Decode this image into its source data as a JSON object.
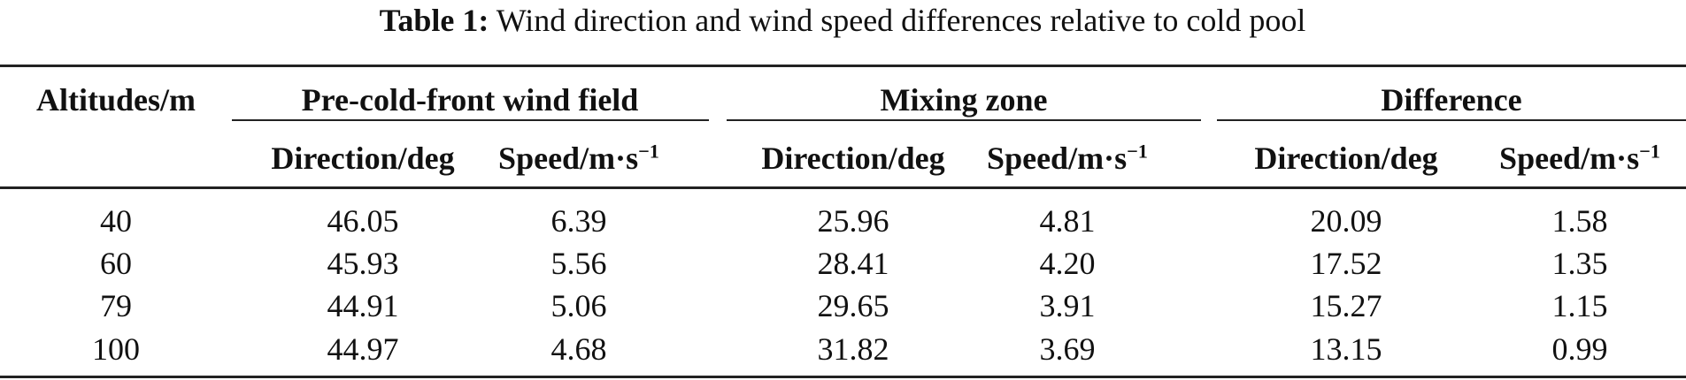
{
  "caption": {
    "label": "Table 1:",
    "text": "Wind direction and wind speed differences relative to cold pool"
  },
  "header": {
    "altitude": "Altitudes/m",
    "groups": [
      "Pre-cold-front wind field",
      "Mixing zone",
      "Difference"
    ],
    "direction": "Direction/deg",
    "speed": "Speed/m·s",
    "speed_exp": "−1"
  },
  "rows": [
    [
      "40",
      "46.05",
      "6.39",
      "25.96",
      "4.81",
      "20.09",
      "1.58"
    ],
    [
      "60",
      "45.93",
      "5.56",
      "28.41",
      "4.20",
      "17.52",
      "1.35"
    ],
    [
      "79",
      "44.91",
      "5.06",
      "29.65",
      "3.91",
      "15.27",
      "1.15"
    ],
    [
      "100",
      "44.97",
      "4.68",
      "31.82",
      "3.69",
      "13.15",
      "0.99"
    ]
  ]
}
